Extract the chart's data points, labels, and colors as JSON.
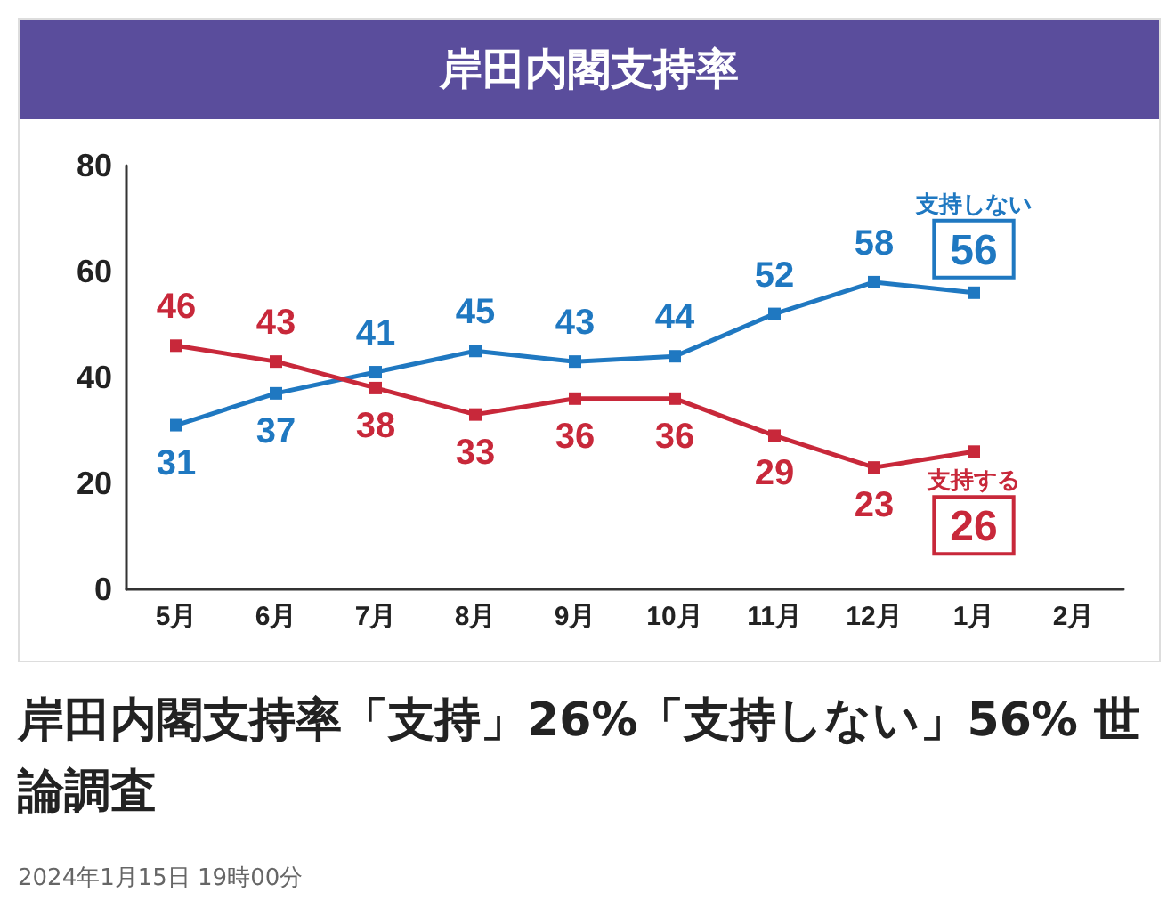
{
  "chart_data": {
    "type": "line",
    "title": "岸田内閣支持率",
    "categories": [
      "5月",
      "6月",
      "7月",
      "8月",
      "9月",
      "10月",
      "11月",
      "12月",
      "1月",
      "2月"
    ],
    "series": [
      {
        "name": "支持しない",
        "color": "#1f78c1",
        "values": [
          31,
          37,
          41,
          45,
          43,
          44,
          52,
          58,
          56,
          null
        ]
      },
      {
        "name": "支持する",
        "color": "#c8283a",
        "values": [
          46,
          43,
          38,
          33,
          36,
          36,
          29,
          23,
          26,
          null
        ]
      }
    ],
    "ylim": [
      0,
      80
    ],
    "yticks": [
      0,
      20,
      40,
      60,
      80
    ],
    "grid": false,
    "legend": false,
    "marker": "square",
    "line_style": "solid",
    "data_labels": true,
    "annotations": [
      "岸田内閣支持率「支持」26%「支持しない」56% 世論調査",
      "2024年1月15日 19時00分"
    ]
  }
}
